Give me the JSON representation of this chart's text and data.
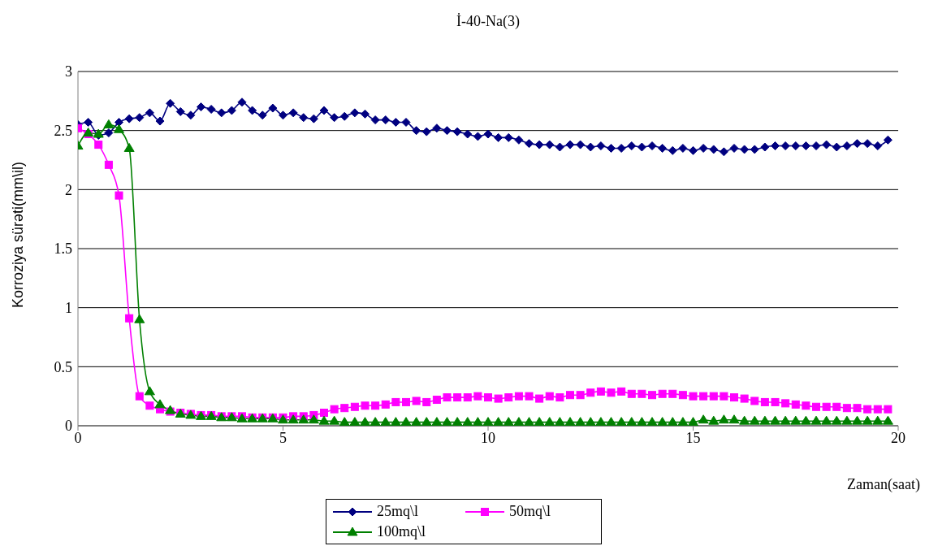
{
  "chart_data": {
    "type": "line",
    "title": "İ-40-Na(3)",
    "xlabel": "Zaman(saat)",
    "ylabel": "Korroziya sürəti(mm\\il)",
    "x": [
      0,
      0.25,
      0.5,
      0.75,
      1,
      1.25,
      1.5,
      1.75,
      2,
      2.25,
      2.5,
      2.75,
      3,
      3.25,
      3.5,
      3.75,
      4,
      4.25,
      4.5,
      4.75,
      5,
      5.25,
      5.5,
      5.75,
      6,
      6.25,
      6.5,
      6.75,
      7,
      7.25,
      7.5,
      7.75,
      8,
      8.25,
      8.5,
      8.75,
      9,
      9.25,
      9.5,
      9.75,
      10,
      10.25,
      10.5,
      10.75,
      11,
      11.25,
      11.5,
      11.75,
      12,
      12.25,
      12.5,
      12.75,
      13,
      13.25,
      13.5,
      13.75,
      14,
      14.25,
      14.5,
      14.75,
      15,
      15.25,
      15.5,
      15.75,
      16,
      16.25,
      16.5,
      16.75,
      17,
      17.25,
      17.5,
      17.75,
      18,
      18.25,
      18.5,
      18.75,
      19,
      19.25,
      19.5,
      19.75
    ],
    "series": [
      {
        "name": "25mq\\l",
        "color": "#000080",
        "marker": "diamond",
        "values": [
          2.55,
          2.57,
          2.46,
          2.48,
          2.57,
          2.6,
          2.61,
          2.65,
          2.58,
          2.73,
          2.66,
          2.63,
          2.7,
          2.68,
          2.65,
          2.67,
          2.74,
          2.67,
          2.63,
          2.69,
          2.63,
          2.65,
          2.61,
          2.6,
          2.67,
          2.61,
          2.62,
          2.65,
          2.64,
          2.59,
          2.59,
          2.57,
          2.57,
          2.5,
          2.49,
          2.52,
          2.5,
          2.49,
          2.47,
          2.45,
          2.47,
          2.44,
          2.44,
          2.42,
          2.39,
          2.38,
          2.38,
          2.36,
          2.38,
          2.38,
          2.36,
          2.37,
          2.35,
          2.35,
          2.37,
          2.36,
          2.37,
          2.35,
          2.33,
          2.35,
          2.33,
          2.35,
          2.34,
          2.32,
          2.35,
          2.34,
          2.34,
          2.36,
          2.37,
          2.37,
          2.37,
          2.37,
          2.37,
          2.38,
          2.36,
          2.37,
          2.39,
          2.39,
          2.37,
          2.42
        ]
      },
      {
        "name": "50mq\\l",
        "color": "#ff00ff",
        "marker": "square",
        "values": [
          2.52,
          2.47,
          2.38,
          2.21,
          1.95,
          0.91,
          0.25,
          0.17,
          0.14,
          0.12,
          0.11,
          0.1,
          0.09,
          0.09,
          0.08,
          0.08,
          0.08,
          0.07,
          0.07,
          0.07,
          0.07,
          0.08,
          0.08,
          0.09,
          0.11,
          0.14,
          0.15,
          0.16,
          0.17,
          0.17,
          0.18,
          0.2,
          0.2,
          0.21,
          0.2,
          0.22,
          0.24,
          0.24,
          0.24,
          0.25,
          0.24,
          0.23,
          0.24,
          0.25,
          0.25,
          0.23,
          0.25,
          0.24,
          0.26,
          0.26,
          0.28,
          0.29,
          0.28,
          0.29,
          0.27,
          0.27,
          0.26,
          0.27,
          0.27,
          0.26,
          0.25,
          0.25,
          0.25,
          0.25,
          0.24,
          0.23,
          0.21,
          0.2,
          0.2,
          0.19,
          0.18,
          0.17,
          0.16,
          0.16,
          0.16,
          0.15,
          0.15,
          0.14,
          0.14,
          0.14
        ]
      },
      {
        "name": "100mq\\l",
        "color": "#008000",
        "marker": "triangle",
        "values": [
          2.37,
          2.48,
          2.47,
          2.55,
          2.51,
          2.35,
          0.9,
          0.29,
          0.18,
          0.13,
          0.1,
          0.09,
          0.08,
          0.08,
          0.07,
          0.07,
          0.06,
          0.06,
          0.06,
          0.06,
          0.05,
          0.05,
          0.05,
          0.05,
          0.04,
          0.04,
          0.03,
          0.03,
          0.03,
          0.03,
          0.03,
          0.03,
          0.03,
          0.03,
          0.03,
          0.03,
          0.03,
          0.03,
          0.03,
          0.03,
          0.03,
          0.03,
          0.03,
          0.03,
          0.03,
          0.03,
          0.03,
          0.03,
          0.03,
          0.03,
          0.03,
          0.03,
          0.03,
          0.03,
          0.03,
          0.03,
          0.03,
          0.03,
          0.03,
          0.03,
          0.03,
          0.05,
          0.04,
          0.05,
          0.05,
          0.04,
          0.04,
          0.04,
          0.04,
          0.04,
          0.04,
          0.04,
          0.04,
          0.04,
          0.04,
          0.04,
          0.04,
          0.04,
          0.04,
          0.04
        ]
      }
    ],
    "xlim": [
      0,
      20
    ],
    "xticks": [
      0,
      5,
      10,
      15,
      20
    ],
    "ylim": [
      0,
      3
    ],
    "yticks": [
      0,
      0.5,
      1,
      1.5,
      2,
      2.5,
      3
    ],
    "grid": "y",
    "legend": "bottom",
    "line_style": "solid"
  }
}
